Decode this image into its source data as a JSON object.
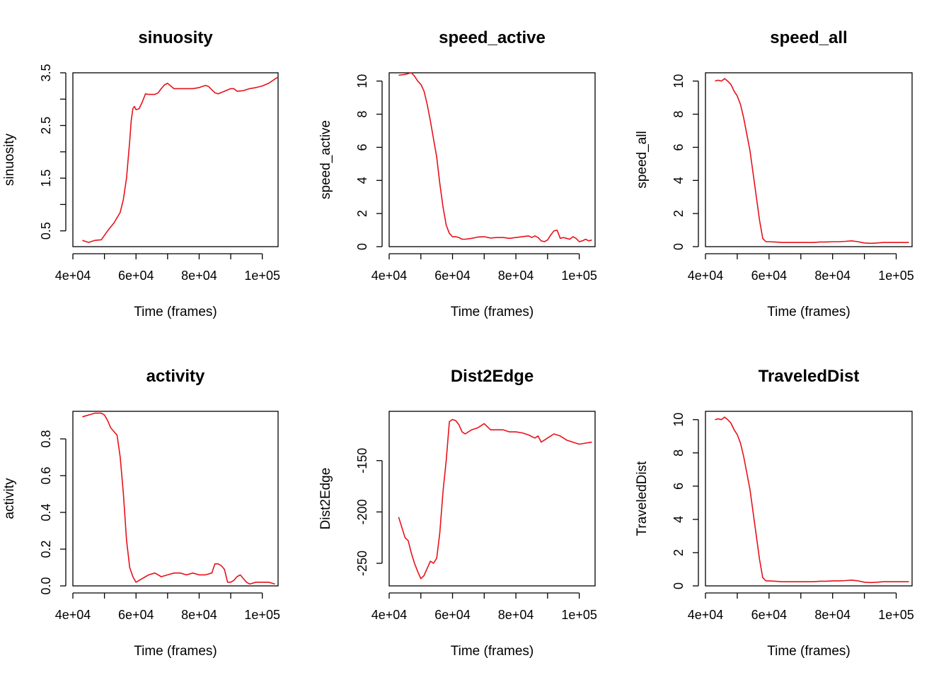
{
  "colors": {
    "line": "#e8111a",
    "axis": "#000000",
    "background": "#ffffff"
  },
  "chart_data": [
    {
      "type": "line",
      "title": "sinuosity",
      "xlabel": "Time (frames)",
      "ylabel": "sinuosity",
      "xlim": [
        40000,
        105000
      ],
      "ylim": [
        0.2,
        3.5
      ],
      "xticks": [
        40000,
        60000,
        80000,
        100000
      ],
      "xticklabels": [
        "4e+04",
        "6e+04",
        "8e+04",
        "1e+05"
      ],
      "yticks": [
        0.5,
        1.0,
        1.5,
        2.0,
        2.5,
        3.0,
        3.5
      ],
      "yticklabels": [
        "0.5",
        "",
        "1.5",
        "",
        "2.5",
        "",
        "3.5"
      ],
      "series": [
        {
          "name": "sinuosity",
          "x": [
            43000,
            45000,
            47000,
            49000,
            51000,
            53000,
            55000,
            56000,
            57000,
            58000,
            58500,
            59000,
            59500,
            60000,
            61000,
            62000,
            63000,
            64000,
            66000,
            67000,
            68000,
            69000,
            70000,
            71000,
            72000,
            74000,
            76000,
            78000,
            80000,
            82000,
            83000,
            84000,
            85000,
            86000,
            88000,
            90000,
            91000,
            92000,
            94000,
            96000,
            98000,
            100000,
            102000,
            104000,
            105000
          ],
          "y": [
            0.32,
            0.28,
            0.32,
            0.33,
            0.5,
            0.65,
            0.85,
            1.1,
            1.5,
            2.2,
            2.6,
            2.82,
            2.86,
            2.8,
            2.82,
            2.95,
            3.1,
            3.09,
            3.09,
            3.12,
            3.2,
            3.27,
            3.3,
            3.25,
            3.2,
            3.2,
            3.2,
            3.2,
            3.22,
            3.26,
            3.24,
            3.18,
            3.12,
            3.1,
            3.15,
            3.2,
            3.2,
            3.15,
            3.16,
            3.2,
            3.22,
            3.25,
            3.3,
            3.38,
            3.42
          ]
        }
      ]
    },
    {
      "type": "line",
      "title": "speed_active",
      "xlabel": "Time (frames)",
      "ylabel": "speed_active",
      "xlim": [
        40000,
        105000
      ],
      "ylim": [
        0,
        10.5
      ],
      "xticks": [
        40000,
        60000,
        80000,
        100000
      ],
      "xticklabels": [
        "4e+04",
        "6e+04",
        "8e+04",
        "1e+05"
      ],
      "yticks": [
        0,
        2,
        4,
        6,
        8,
        10
      ],
      "yticklabels": [
        "0",
        "2",
        "4",
        "6",
        "8",
        "10"
      ],
      "series": [
        {
          "name": "speed_active",
          "x": [
            43000,
            45000,
            47000,
            48000,
            49000,
            50000,
            51000,
            52000,
            53000,
            54000,
            55000,
            56000,
            57000,
            58000,
            59000,
            60000,
            61000,
            62000,
            63000,
            64000,
            66000,
            68000,
            70000,
            72000,
            74000,
            76000,
            78000,
            80000,
            82000,
            84000,
            85000,
            86000,
            87000,
            88000,
            89000,
            90000,
            91000,
            92000,
            93000,
            94000,
            95000,
            96000,
            97000,
            98000,
            99000,
            100000,
            101000,
            102000,
            103000,
            104000
          ],
          "y": [
            10.35,
            10.4,
            10.5,
            10.3,
            10.0,
            9.8,
            9.4,
            8.6,
            7.6,
            6.5,
            5.4,
            3.8,
            2.4,
            1.3,
            0.8,
            0.6,
            0.6,
            0.55,
            0.45,
            0.45,
            0.5,
            0.58,
            0.6,
            0.52,
            0.55,
            0.55,
            0.5,
            0.55,
            0.6,
            0.65,
            0.55,
            0.65,
            0.55,
            0.35,
            0.3,
            0.4,
            0.7,
            0.95,
            1.0,
            0.5,
            0.55,
            0.5,
            0.45,
            0.6,
            0.5,
            0.3,
            0.35,
            0.45,
            0.35,
            0.4
          ]
        }
      ]
    },
    {
      "type": "line",
      "title": "speed_all",
      "xlabel": "Time (frames)",
      "ylabel": "speed_all",
      "xlim": [
        40000,
        105000
      ],
      "ylim": [
        0,
        10.5
      ],
      "xticks": [
        40000,
        60000,
        80000,
        100000
      ],
      "xticklabels": [
        "4e+04",
        "6e+04",
        "8e+04",
        "1e+05"
      ],
      "yticks": [
        0,
        2,
        4,
        6,
        8,
        10
      ],
      "yticklabels": [
        "0",
        "2",
        "4",
        "6",
        "8",
        "10"
      ],
      "series": [
        {
          "name": "speed_all",
          "x": [
            43000,
            44000,
            45000,
            46000,
            47000,
            48000,
            49000,
            50000,
            51000,
            52000,
            53000,
            54000,
            55000,
            56000,
            57000,
            58000,
            59000,
            60000,
            62000,
            64000,
            66000,
            68000,
            70000,
            72000,
            74000,
            76000,
            78000,
            80000,
            82000,
            84000,
            86000,
            88000,
            90000,
            92000,
            94000,
            96000,
            98000,
            100000,
            102000,
            104000
          ],
          "y": [
            10.0,
            10.05,
            10.0,
            10.15,
            10.0,
            9.8,
            9.4,
            9.1,
            8.6,
            7.8,
            6.8,
            5.8,
            4.4,
            3.0,
            1.6,
            0.5,
            0.3,
            0.3,
            0.28,
            0.25,
            0.25,
            0.25,
            0.25,
            0.25,
            0.25,
            0.28,
            0.28,
            0.3,
            0.3,
            0.32,
            0.35,
            0.3,
            0.22,
            0.2,
            0.22,
            0.25,
            0.25,
            0.25,
            0.25,
            0.25
          ]
        }
      ]
    },
    {
      "type": "line",
      "title": "activity",
      "xlabel": "Time (frames)",
      "ylabel": "activity",
      "xlim": [
        40000,
        105000
      ],
      "ylim": [
        0,
        0.95
      ],
      "xticks": [
        40000,
        60000,
        80000,
        100000
      ],
      "xticklabels": [
        "4e+04",
        "6e+04",
        "8e+04",
        "1e+05"
      ],
      "yticks": [
        0.0,
        0.2,
        0.4,
        0.6,
        0.8
      ],
      "yticklabels": [
        "0.0",
        "0.2",
        "0.4",
        "0.6",
        "0.8"
      ],
      "series": [
        {
          "name": "activity",
          "x": [
            43000,
            45000,
            47000,
            49000,
            50000,
            51000,
            52000,
            53000,
            54000,
            55000,
            56000,
            57000,
            58000,
            59000,
            60000,
            61000,
            62000,
            63000,
            64000,
            66000,
            68000,
            70000,
            72000,
            74000,
            76000,
            78000,
            80000,
            82000,
            84000,
            85000,
            86000,
            87000,
            88000,
            89000,
            90000,
            91000,
            92000,
            93000,
            94000,
            95000,
            96000,
            98000,
            100000,
            102000,
            104000
          ],
          "y": [
            0.92,
            0.93,
            0.94,
            0.94,
            0.93,
            0.9,
            0.86,
            0.84,
            0.82,
            0.7,
            0.5,
            0.25,
            0.1,
            0.05,
            0.02,
            0.03,
            0.04,
            0.05,
            0.06,
            0.07,
            0.05,
            0.06,
            0.07,
            0.07,
            0.06,
            0.07,
            0.06,
            0.06,
            0.07,
            0.12,
            0.12,
            0.11,
            0.09,
            0.02,
            0.02,
            0.03,
            0.05,
            0.06,
            0.04,
            0.02,
            0.01,
            0.02,
            0.02,
            0.02,
            0.01
          ]
        }
      ]
    },
    {
      "type": "line",
      "title": "Dist2Edge",
      "xlabel": "Time (frames)",
      "ylabel": "Dist2Edge",
      "xlim": [
        40000,
        105000
      ],
      "ylim": [
        -272,
        -102
      ],
      "xticks": [
        40000,
        60000,
        80000,
        100000
      ],
      "xticklabels": [
        "4e+04",
        "6e+04",
        "8e+04",
        "1e+05"
      ],
      "yticks": [
        -250,
        -200,
        -150
      ],
      "yticklabels": [
        "-250",
        "-200",
        "-150"
      ],
      "series": [
        {
          "name": "Dist2Edge",
          "x": [
            43000,
            44000,
            45000,
            46000,
            47000,
            48000,
            49000,
            50000,
            51000,
            52000,
            53000,
            54000,
            55000,
            56000,
            57000,
            58000,
            59000,
            60000,
            61000,
            62000,
            63000,
            64000,
            66000,
            68000,
            70000,
            72000,
            74000,
            76000,
            78000,
            80000,
            82000,
            84000,
            86000,
            87000,
            88000,
            89000,
            90000,
            92000,
            94000,
            96000,
            98000,
            100000,
            102000,
            104000
          ],
          "y": [
            -205,
            -215,
            -225,
            -228,
            -240,
            -250,
            -258,
            -265,
            -262,
            -255,
            -248,
            -250,
            -245,
            -220,
            -180,
            -150,
            -112,
            -110,
            -111,
            -115,
            -122,
            -124,
            -120,
            -118,
            -114,
            -120,
            -120,
            -120,
            -122,
            -122,
            -123,
            -125,
            -128,
            -126,
            -132,
            -130,
            -128,
            -124,
            -126,
            -130,
            -132,
            -134,
            -133,
            -132
          ]
        }
      ]
    },
    {
      "type": "line",
      "title": "TraveledDist",
      "xlabel": "Time (frames)",
      "ylabel": "TraveledDist",
      "xlim": [
        40000,
        105000
      ],
      "ylim": [
        0,
        10.5
      ],
      "xticks": [
        40000,
        60000,
        80000,
        100000
      ],
      "xticklabels": [
        "4e+04",
        "6e+04",
        "8e+04",
        "1e+05"
      ],
      "yticks": [
        0,
        2,
        4,
        6,
        8,
        10
      ],
      "yticklabels": [
        "0",
        "2",
        "4",
        "6",
        "8",
        "10"
      ],
      "series": [
        {
          "name": "TraveledDist",
          "x": [
            43000,
            44000,
            45000,
            46000,
            47000,
            48000,
            49000,
            50000,
            51000,
            52000,
            53000,
            54000,
            55000,
            56000,
            57000,
            58000,
            59000,
            60000,
            62000,
            64000,
            66000,
            68000,
            70000,
            72000,
            74000,
            76000,
            78000,
            80000,
            82000,
            84000,
            86000,
            88000,
            90000,
            92000,
            94000,
            96000,
            98000,
            100000,
            102000,
            104000
          ],
          "y": [
            10.0,
            10.05,
            10.0,
            10.15,
            10.0,
            9.8,
            9.4,
            9.1,
            8.6,
            7.8,
            6.8,
            5.8,
            4.4,
            3.0,
            1.6,
            0.5,
            0.3,
            0.3,
            0.28,
            0.25,
            0.25,
            0.25,
            0.25,
            0.25,
            0.25,
            0.28,
            0.28,
            0.3,
            0.3,
            0.32,
            0.35,
            0.3,
            0.22,
            0.2,
            0.22,
            0.25,
            0.25,
            0.25,
            0.25,
            0.25
          ]
        }
      ]
    }
  ]
}
